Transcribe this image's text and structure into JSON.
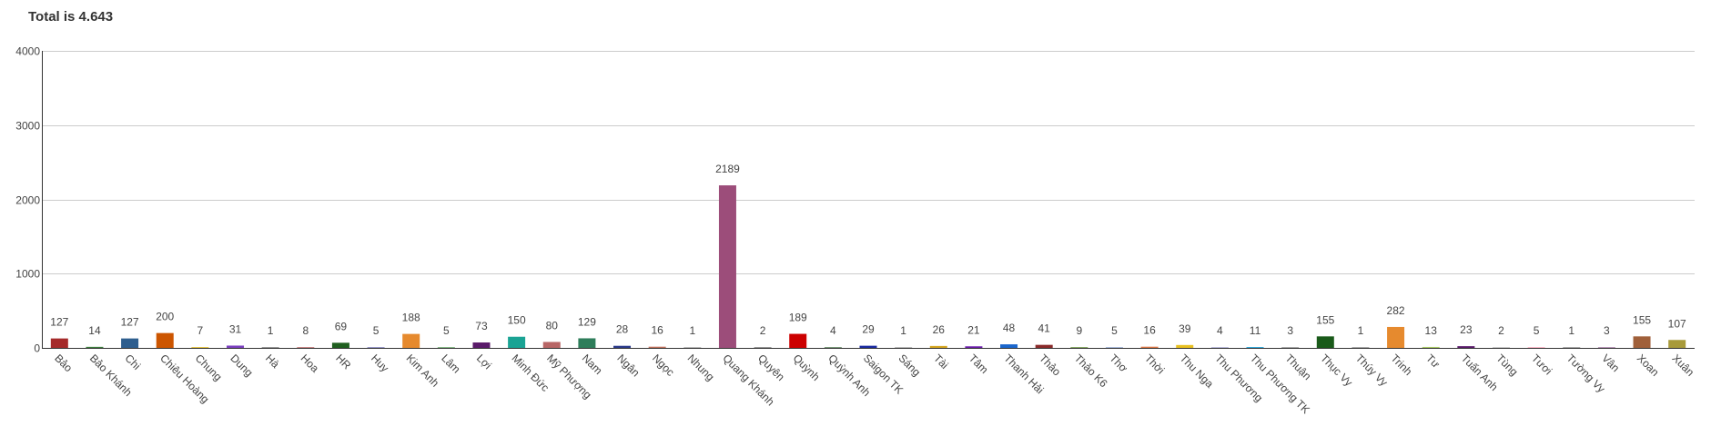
{
  "header": {
    "title": "Total is 4.643"
  },
  "chart_data": {
    "type": "bar",
    "title": "Total is 4.643",
    "xlabel": "",
    "ylabel": "",
    "ylim": [
      0,
      4000
    ],
    "yticks": [
      0,
      1000,
      2000,
      3000,
      4000
    ],
    "grid": true,
    "legend": "none",
    "categories": [
      "Bảo",
      "Bảo Khánh",
      "Chi",
      "Chiêu Hoàng",
      "Chung",
      "Dung",
      "Hà",
      "Hoa",
      "HR",
      "Huy",
      "Kim Anh",
      "Lâm",
      "Lợi",
      "Minh Đức",
      "Mỹ Phượng",
      "Nam",
      "Ngân",
      "Ngọc",
      "Nhung",
      "Quang Khánh",
      "Quyên",
      "Quỳnh",
      "Quỳnh Anh",
      "Saigon TK",
      "Sáng",
      "Tài",
      "Tâm",
      "Thanh Hải",
      "Thảo",
      "Thảo K6",
      "Thơ",
      "Thời",
      "Thu Nga",
      "Thu Phương",
      "Thu Phương TK",
      "Thuận",
      "Thục Vy",
      "Thúy Vy",
      "Trinh",
      "Tư",
      "Tuấn Anh",
      "Tùng",
      "Tươi",
      "Tường Vy",
      "Vân",
      "Xoan",
      "Xuân"
    ],
    "values": [
      127,
      14,
      127,
      200,
      7,
      31,
      1,
      8,
      69,
      5,
      188,
      5,
      73,
      150,
      80,
      129,
      28,
      16,
      1,
      2189,
      2,
      189,
      4,
      29,
      1,
      26,
      21,
      48,
      41,
      9,
      5,
      16,
      39,
      4,
      11,
      3,
      155,
      1,
      282,
      13,
      23,
      2,
      5,
      1,
      3,
      155,
      107
    ],
    "colors": [
      "#a52a2a",
      "#3a7d3a",
      "#2e5e8e",
      "#cc5500",
      "#e8c84a",
      "#7b3fbf",
      "#999999",
      "#cc8888",
      "#1f5f1f",
      "#9999cc",
      "#e68a2e",
      "#88bb88",
      "#5a1a6a",
      "#1aa394",
      "#b86666",
      "#2e7d5a",
      "#2a3a8a",
      "#c0705a",
      "#bbbbbb",
      "#9c4d7a",
      "#999999",
      "#cc0000",
      "#7a9a7a",
      "#1a2aa0",
      "#bbbbbb",
      "#d4a520",
      "#6a1aaa",
      "#1a66cc",
      "#8a2a2a",
      "#88aa66",
      "#aabbdd",
      "#dd7744",
      "#e8c020",
      "#bbbbdd",
      "#33aadd",
      "#aaaaaa",
      "#1a5a1a",
      "#aaaaaa",
      "#e68a2e",
      "#aacc66",
      "#5a1a6a",
      "#cccccc",
      "#ffbbcc",
      "#aaaaaa",
      "#bb99bb",
      "#a0603a",
      "#a89a3a"
    ]
  }
}
